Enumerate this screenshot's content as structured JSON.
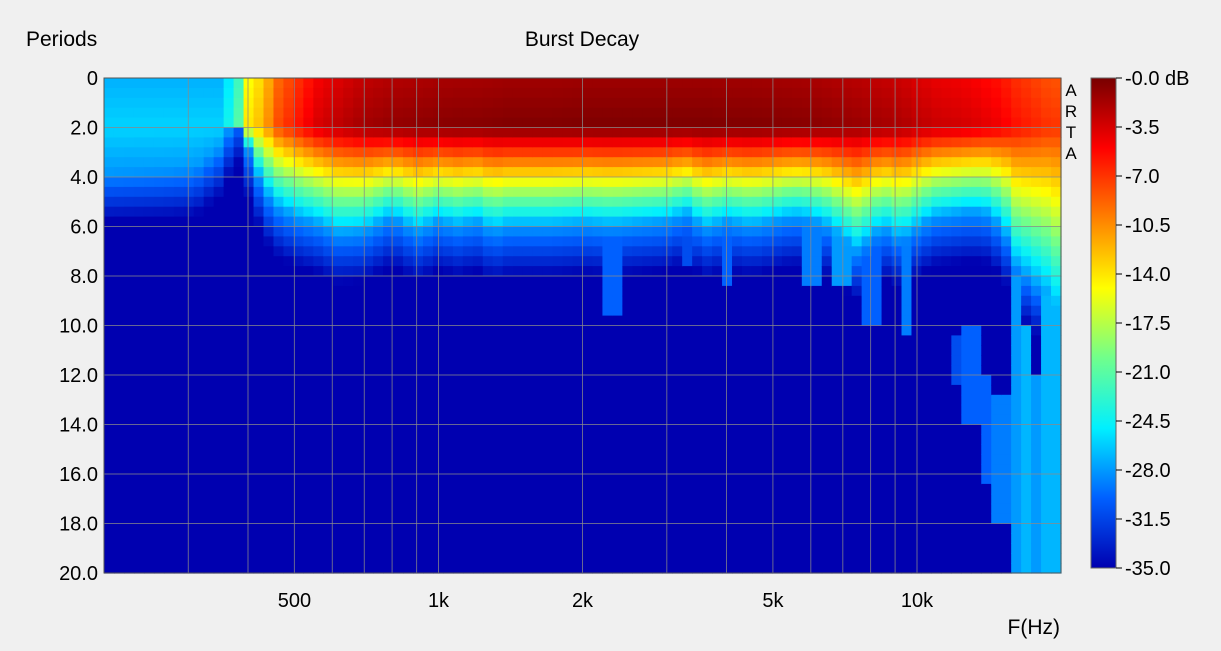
{
  "chart_data": {
    "type": "heatmap",
    "title": "Burst Decay",
    "ylabel": "Periods",
    "xlabel": "F(Hz)",
    "x_scale": "log",
    "xlim": [
      200,
      20000
    ],
    "ylim": [
      0,
      20
    ],
    "y_inverted": true,
    "x_ticks": [
      {
        "value": 500,
        "label": "500"
      },
      {
        "value": 1000,
        "label": "1k"
      },
      {
        "value": 2000,
        "label": "2k"
      },
      {
        "value": 5000,
        "label": "5k"
      },
      {
        "value": 10000,
        "label": "10k"
      }
    ],
    "x_gridlines": [
      300,
      400,
      500,
      600,
      700,
      800,
      900,
      1000,
      2000,
      3000,
      4000,
      5000,
      6000,
      7000,
      8000,
      9000,
      10000
    ],
    "y_ticks": [
      {
        "value": 0,
        "label": "0"
      },
      {
        "value": 2,
        "label": "2.0"
      },
      {
        "value": 4,
        "label": "4.0"
      },
      {
        "value": 6,
        "label": "6.0"
      },
      {
        "value": 8,
        "label": "8.0"
      },
      {
        "value": 10,
        "label": "10.0"
      },
      {
        "value": 12,
        "label": "12.0"
      },
      {
        "value": 14,
        "label": "14.0"
      },
      {
        "value": 16,
        "label": "16.0"
      },
      {
        "value": 18,
        "label": "18.0"
      },
      {
        "value": 20,
        "label": "20.0"
      }
    ],
    "grid": true,
    "watermark": [
      "A",
      "R",
      "T",
      "A"
    ],
    "colorbar": {
      "unit": "dB",
      "min": -35,
      "max": 0,
      "ticks": [
        {
          "value": 0,
          "label": "-0.0 dB"
        },
        {
          "value": -3.5,
          "label": "-3.5"
        },
        {
          "value": -7,
          "label": "-7.0"
        },
        {
          "value": -10.5,
          "label": "-10.5"
        },
        {
          "value": -14,
          "label": "-14.0"
        },
        {
          "value": -17.5,
          "label": "-17.5"
        },
        {
          "value": -21,
          "label": "-21.0"
        },
        {
          "value": -24.5,
          "label": "-24.5"
        },
        {
          "value": -28,
          "label": "-28.0"
        },
        {
          "value": -31.5,
          "label": "-31.5"
        },
        {
          "value": -35,
          "label": "-35.0"
        }
      ],
      "colors": [
        "#0000b0",
        "#0060ff",
        "#00f0ff",
        "#70ff8c",
        "#ffff00",
        "#ff8000",
        "#ff0000",
        "#780000"
      ]
    },
    "decay_profile": {
      "freqs": [
        200,
        270,
        310,
        350,
        380,
        400,
        430,
        460,
        500,
        560,
        620,
        700,
        800,
        900,
        1000,
        1100,
        1200,
        1300,
        1400,
        1500,
        1700,
        2000,
        2300,
        2600,
        3000,
        3300,
        3600,
        4000,
        4500,
        5000,
        5500,
        6000,
        6500,
        7000,
        7500,
        8000,
        8500,
        9000,
        9400,
        9700,
        10000,
        10500,
        11000,
        12000,
        13000,
        14000,
        15000,
        15500,
        16000,
        17000,
        18000,
        19000,
        19500,
        20000
      ],
      "decay_periods": [
        3.8,
        3.7,
        3.6,
        2.8,
        1.3,
        2.8,
        4.5,
        5.2,
        5.6,
        5.9,
        6.3,
        6.2,
        5.6,
        6.2,
        5.8,
        6.0,
        5.8,
        6.2,
        6.0,
        6.0,
        6.0,
        5.9,
        6.0,
        5.9,
        5.8,
        5.5,
        6.1,
        5.8,
        6.0,
        5.8,
        5.6,
        5.7,
        6.0,
        6.5,
        7.0,
        6.5,
        6.0,
        6.5,
        6.0,
        7.0,
        6.0,
        5.8,
        5.6,
        5.5,
        5.4,
        5.5,
        6.0,
        6.5,
        7.5,
        8.0,
        8.5,
        9.0,
        9.5,
        10.0
      ],
      "level_at_2_periods": [
        -26,
        -26,
        -26,
        -26,
        -22,
        -14,
        -12,
        -8,
        -6,
        -3.5,
        -2.5,
        -1.5,
        -1,
        -0.8,
        -0.6,
        -0.5,
        -0.5,
        -0.4,
        -0.3,
        -0.3,
        -0.3,
        -0.2,
        -0.2,
        -0.2,
        -0.2,
        -0.2,
        -0.2,
        -0.3,
        -0.3,
        -0.4,
        -0.5,
        -0.6,
        -0.8,
        -1,
        -1.2,
        -1.4,
        -1.6,
        -1.8,
        -2,
        -2.2,
        -2.5,
        -2.7,
        -3,
        -3.2,
        -3.5,
        -4,
        -4.5,
        -5,
        -5.5,
        -6,
        -6.5,
        -7,
        -7,
        -7
      ]
    },
    "resonance_tails": [
      {
        "freq": 2300,
        "from": 6.5,
        "to": 9.5,
        "level": -30
      },
      {
        "freq": 3300,
        "from": 6.0,
        "to": 7.5,
        "level": -31
      },
      {
        "freq": 4000,
        "from": 6.0,
        "to": 8.5,
        "level": -30
      },
      {
        "freq": 6000,
        "from": 5.5,
        "to": 8.5,
        "level": -29
      },
      {
        "freq": 7000,
        "from": 5.0,
        "to": 8.5,
        "level": -28
      },
      {
        "freq": 8000,
        "from": 6.0,
        "to": 10.0,
        "level": -30
      },
      {
        "freq": 9400,
        "from": 5.0,
        "to": 10.5,
        "level": -29
      },
      {
        "freq": 12000,
        "from": 10.5,
        "to": 12.5,
        "level": -31
      },
      {
        "freq": 13000,
        "from": 10.0,
        "to": 14.0,
        "level": -30
      },
      {
        "freq": 14000,
        "from": 12.0,
        "to": 16.5,
        "level": -30
      },
      {
        "freq": 15000,
        "from": 13.0,
        "to": 18.0,
        "level": -29
      },
      {
        "freq": 16000,
        "from": 8.0,
        "to": 20.0,
        "level": -28
      },
      {
        "freq": 17000,
        "from": 10.0,
        "to": 20.0,
        "level": -27
      },
      {
        "freq": 18000,
        "from": 12.0,
        "to": 20.0,
        "level": -28
      },
      {
        "freq": 19000,
        "from": 9.0,
        "to": 20.0,
        "level": -27
      }
    ]
  }
}
